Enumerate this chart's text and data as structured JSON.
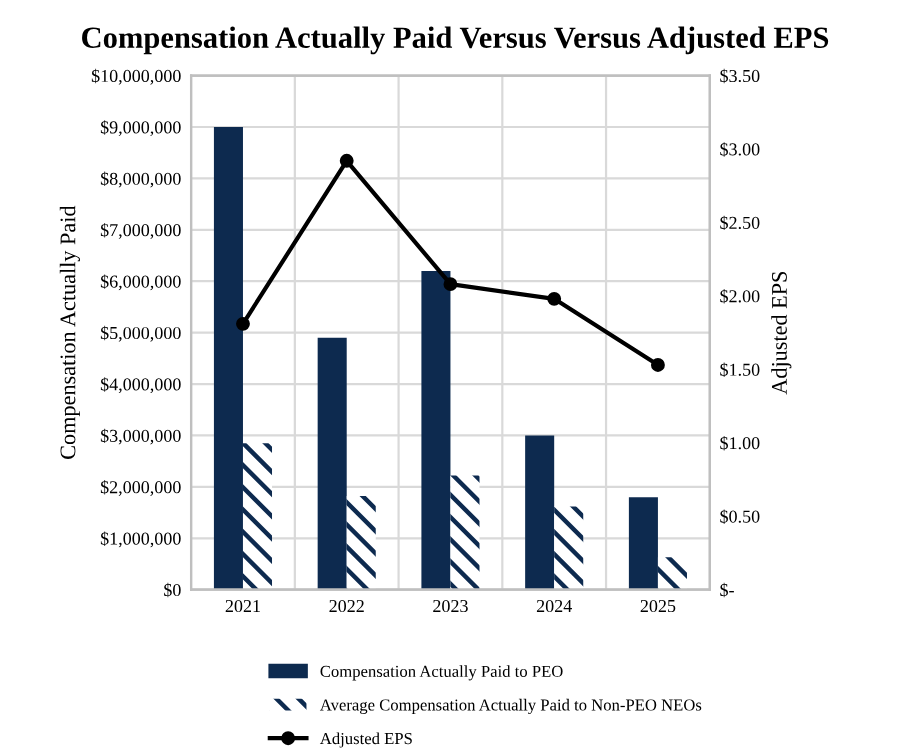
{
  "chart_data": {
    "type": "bar",
    "title": "Compensation Actually Paid Versus Versus Adjusted EPS",
    "ylabel": "Compensation Actually Paid",
    "y2label": "Adjusted EPS",
    "categories": [
      "2021",
      "2022",
      "2023",
      "2024",
      "2025"
    ],
    "series": [
      {
        "name": "Compensation Actually Paid to PEO",
        "color": "#0d2a4f",
        "values": [
          9000000,
          4900000,
          6200000,
          3000000,
          1800000
        ]
      },
      {
        "name": "Average Compensation Actually Paid to Non-PEO NEOs",
        "color": "#0d2a4f",
        "values": [
          2850000,
          1820000,
          2220000,
          1620000,
          630000
        ]
      },
      {
        "name": "Adjusted EPS",
        "type": "line",
        "axis": "y2",
        "color": "#000000",
        "marker": "circle",
        "values": [
          1.81,
          2.92,
          2.08,
          1.98,
          1.53
        ]
      }
    ],
    "ylim": [
      0,
      10000000
    ],
    "yticks": [
      {
        "value": 0,
        "label": "$0"
      },
      {
        "value": 1000000,
        "label": "$1,000,000"
      },
      {
        "value": 2000000,
        "label": "$2,000,000"
      },
      {
        "value": 3000000,
        "label": "$3,000,000"
      },
      {
        "value": 4000000,
        "label": "$4,000,000"
      },
      {
        "value": 5000000,
        "label": "$5,000,000"
      },
      {
        "value": 6000000,
        "label": "$6,000,000"
      },
      {
        "value": 7000000,
        "label": "$7,000,000"
      },
      {
        "value": 8000000,
        "label": "$8,000,000"
      },
      {
        "value": 9000000,
        "label": "$9,000,000"
      },
      {
        "value": 10000000,
        "label": "$10,000,000"
      }
    ],
    "y2lim": [
      0,
      3.5
    ],
    "y2ticks": [
      {
        "value": 0,
        "label": "$-"
      },
      {
        "value": 0.5,
        "label": "$0.50"
      },
      {
        "value": 1,
        "label": "$1.00"
      },
      {
        "value": 1.5,
        "label": "$1.50"
      },
      {
        "value": 2,
        "label": "$2.00"
      },
      {
        "value": 2.5,
        "label": "$2.50"
      },
      {
        "value": 3,
        "label": "$3.00"
      },
      {
        "value": 3.5,
        "label": "$3.50"
      }
    ],
    "grid": true,
    "legend": "bottom"
  }
}
